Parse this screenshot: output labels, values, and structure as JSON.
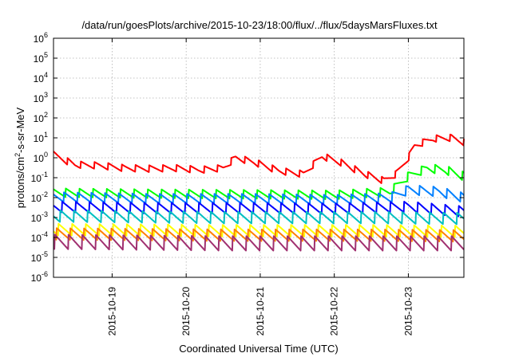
{
  "chart_data": {
    "type": "line",
    "title": "/data/run/goesPlots/archive/2015-10-23/18:00/flux/../flux/5daysMarsFluxes.txt",
    "xlabel": "Coordinated Universal Time (UTC)",
    "ylabel": {
      "base": "protons/cm",
      "sup": "2",
      "rest": "-s-sr-MeV"
    },
    "y_scale": "log",
    "ylim_exp": [
      -6,
      6
    ],
    "y_ticks": [
      {
        "base": "10",
        "exp": "-6"
      },
      {
        "base": "10",
        "exp": "-5"
      },
      {
        "base": "10",
        "exp": "-4"
      },
      {
        "base": "10",
        "exp": "-3"
      },
      {
        "base": "10",
        "exp": "-2"
      },
      {
        "base": "10",
        "exp": "-1"
      },
      {
        "base": "10",
        "exp": "0"
      },
      {
        "base": "10",
        "exp": "1"
      },
      {
        "base": "10",
        "exp": "2"
      },
      {
        "base": "10",
        "exp": "3"
      },
      {
        "base": "10",
        "exp": "4"
      },
      {
        "base": "10",
        "exp": "5"
      },
      {
        "base": "10",
        "exp": "6"
      }
    ],
    "xlim": [
      "2015-10-18T05:00",
      "2015-10-23T18:00"
    ],
    "x_ticks": [
      {
        "label": "2015-10-19",
        "date": "2015-10-19T00:00"
      },
      {
        "label": "2015-10-20",
        "date": "2015-10-20T00:00"
      },
      {
        "label": "2015-10-21",
        "date": "2015-10-21T00:00"
      },
      {
        "label": "2015-10-22",
        "date": "2015-10-22T00:00"
      },
      {
        "label": "2015-10-23",
        "date": "2015-10-23T00:00"
      }
    ],
    "grid": true,
    "legend": "none",
    "series": [
      {
        "color": "#ff0000",
        "points": [
          [
            "2015-10-18T05:00",
            1.4
          ],
          [
            "2015-10-18T12:00",
            0.45
          ],
          [
            "2015-10-18T20:00",
            0.4
          ],
          [
            "2015-10-19T04:00",
            0.3
          ],
          [
            "2015-10-19T12:00",
            0.28
          ],
          [
            "2015-10-19T20:00",
            0.3
          ],
          [
            "2015-10-20T04:00",
            0.25
          ],
          [
            "2015-10-20T12:00",
            0.3
          ],
          [
            "2015-10-20T16:00",
            1.0
          ],
          [
            "2015-10-20T22:00",
            0.6
          ],
          [
            "2015-10-21T06:00",
            0.22
          ],
          [
            "2015-10-21T14:00",
            0.15
          ],
          [
            "2015-10-21T20:00",
            1.2
          ],
          [
            "2015-10-22T02:00",
            0.6
          ],
          [
            "2015-10-22T10:00",
            0.15
          ],
          [
            "2015-10-22T16:00",
            0.07
          ],
          [
            "2015-10-22T20:00",
            0.15
          ],
          [
            "2015-10-23T00:00",
            1.0
          ],
          [
            "2015-10-23T02:00",
            4
          ],
          [
            "2015-10-23T08:00",
            9
          ],
          [
            "2015-10-23T14:00",
            10
          ],
          [
            "2015-10-23T18:00",
            6
          ]
        ],
        "saw_amp": 0.35,
        "saw_n": 30
      },
      {
        "color": "#00ff00",
        "points": [
          [
            "2015-10-18T05:00",
            0.018
          ],
          [
            "2015-10-19T12:00",
            0.016
          ],
          [
            "2015-10-20T20:00",
            0.015
          ],
          [
            "2015-10-22T00:00",
            0.014
          ],
          [
            "2015-10-22T18:00",
            0.02
          ],
          [
            "2015-10-23T00:00",
            0.12
          ],
          [
            "2015-10-23T06:00",
            0.3
          ],
          [
            "2015-10-23T12:00",
            0.25
          ],
          [
            "2015-10-23T18:00",
            0.12
          ]
        ],
        "saw_amp": 0.45,
        "saw_n": 30
      },
      {
        "color": "#0080ff",
        "points": [
          [
            "2015-10-18T05:00",
            0.011
          ],
          [
            "2015-10-19T12:00",
            0.009
          ],
          [
            "2015-10-20T20:00",
            0.009
          ],
          [
            "2015-10-22T00:00",
            0.008
          ],
          [
            "2015-10-22T18:00",
            0.01
          ],
          [
            "2015-10-23T00:00",
            0.025
          ],
          [
            "2015-10-23T10:00",
            0.02
          ],
          [
            "2015-10-23T18:00",
            0.01
          ]
        ],
        "saw_amp": 0.5,
        "saw_n": 30
      },
      {
        "color": "#0000ff",
        "points": [
          [
            "2015-10-18T05:00",
            0.0035
          ],
          [
            "2015-10-19T12:00",
            0.003
          ],
          [
            "2015-10-20T20:00",
            0.003
          ],
          [
            "2015-10-22T00:00",
            0.0028
          ],
          [
            "2015-10-23T00:00",
            0.0035
          ],
          [
            "2015-10-23T18:00",
            0.002
          ]
        ],
        "saw_amp": 0.55,
        "saw_n": 30
      },
      {
        "color": "#00c0c0",
        "points": [
          [
            "2015-10-18T05:00",
            0.0012
          ],
          [
            "2015-10-20T12:00",
            0.001
          ],
          [
            "2015-10-22T12:00",
            0.001
          ],
          [
            "2015-10-23T18:00",
            0.0009
          ]
        ],
        "saw_amp": 0.6,
        "saw_n": 30
      },
      {
        "color": "#ffff00",
        "points": [
          [
            "2015-10-18T05:00",
            0.00025
          ],
          [
            "2015-10-20T12:00",
            0.00022
          ],
          [
            "2015-10-22T12:00",
            0.00022
          ],
          [
            "2015-10-23T18:00",
            0.0002
          ]
        ],
        "saw_amp": 0.6,
        "saw_n": 30
      },
      {
        "color": "#ff8000",
        "points": [
          [
            "2015-10-18T05:00",
            0.00015
          ],
          [
            "2015-10-20T12:00",
            0.00013
          ],
          [
            "2015-10-22T12:00",
            0.00013
          ],
          [
            "2015-10-23T18:00",
            0.00012
          ]
        ],
        "saw_amp": 0.6,
        "saw_n": 30
      },
      {
        "color": "#a03070",
        "points": [
          [
            "2015-10-18T05:00",
            6e-05
          ],
          [
            "2015-10-20T12:00",
            5e-05
          ],
          [
            "2015-10-22T12:00",
            5e-05
          ],
          [
            "2015-10-23T18:00",
            5e-05
          ]
        ],
        "saw_amp": 0.75,
        "saw_n": 30
      }
    ]
  }
}
